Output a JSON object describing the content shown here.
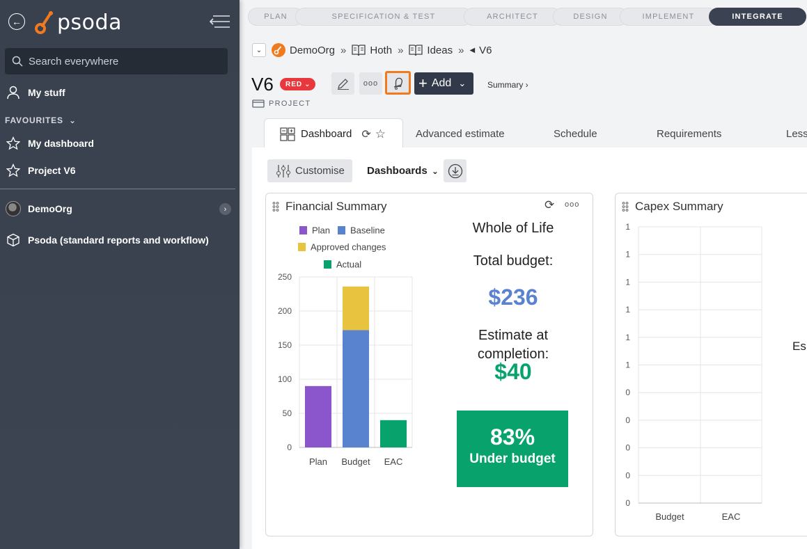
{
  "sidebar": {
    "logo_text": "psoda",
    "search_placeholder": "Search everywhere",
    "my_stuff": "My stuff",
    "favourites_label": "FAVOURITES",
    "favourites": [
      "My dashboard",
      "Project V6"
    ],
    "org": "DemoOrg",
    "workflow": "Psoda (standard reports and workflow)"
  },
  "phases": [
    "PLAN",
    "SPECIFICATION & TEST",
    "ARCHITECT",
    "DESIGN",
    "IMPLEMENT",
    "INTEGRATE"
  ],
  "breadcrumb": {
    "items": [
      "DemoOrg",
      "Hoth",
      "Ideas",
      "V6"
    ]
  },
  "header": {
    "title": "V6",
    "status_badge": "RED",
    "type_label": "PROJECT",
    "add_label": "Add",
    "summary_link": "Summary ›"
  },
  "tabs": [
    "Dashboard",
    "Advanced estimate",
    "Schedule",
    "Requirements",
    "Less"
  ],
  "toolbar": {
    "customise_label": "Customise",
    "dashboards_label": "Dashboards"
  },
  "financial_summary": {
    "title": "Financial Summary",
    "whole_of_life": "Whole of Life",
    "total_budget_label": "Total budget:",
    "total_budget_value": "$236",
    "eac_label_1": "Estimate at",
    "eac_label_2": "completion:",
    "eac_value": "$40",
    "percent": "83%",
    "percent_label": "Under budget"
  },
  "capex_summary": {
    "title": "Capex Summary",
    "y_ticks": [
      "1",
      "1",
      "1",
      "1",
      "1",
      "1",
      "0",
      "0",
      "0",
      "0",
      "0"
    ],
    "categories": [
      "Budget",
      "EAC"
    ],
    "cut_text": "Es"
  },
  "colors": {
    "plan": "#8b55cc",
    "baseline": "#5a83cf",
    "approved": "#e8c33f",
    "actual": "#08a36d",
    "brand_orange": "#f07a1e"
  },
  "chart_data": {
    "type": "bar",
    "categories": [
      "Plan",
      "Budget",
      "EAC"
    ],
    "series": [
      {
        "name": "Plan",
        "values": [
          90,
          0,
          0
        ]
      },
      {
        "name": "Baseline",
        "values": [
          0,
          172,
          0
        ]
      },
      {
        "name": "Approved changes",
        "values": [
          0,
          64,
          0
        ]
      },
      {
        "name": "Actual",
        "values": [
          0,
          0,
          40
        ]
      }
    ],
    "stacked": true,
    "ylim": [
      0,
      250
    ],
    "y_ticks": [
      0,
      50,
      100,
      150,
      200,
      250
    ],
    "legend": "top"
  }
}
